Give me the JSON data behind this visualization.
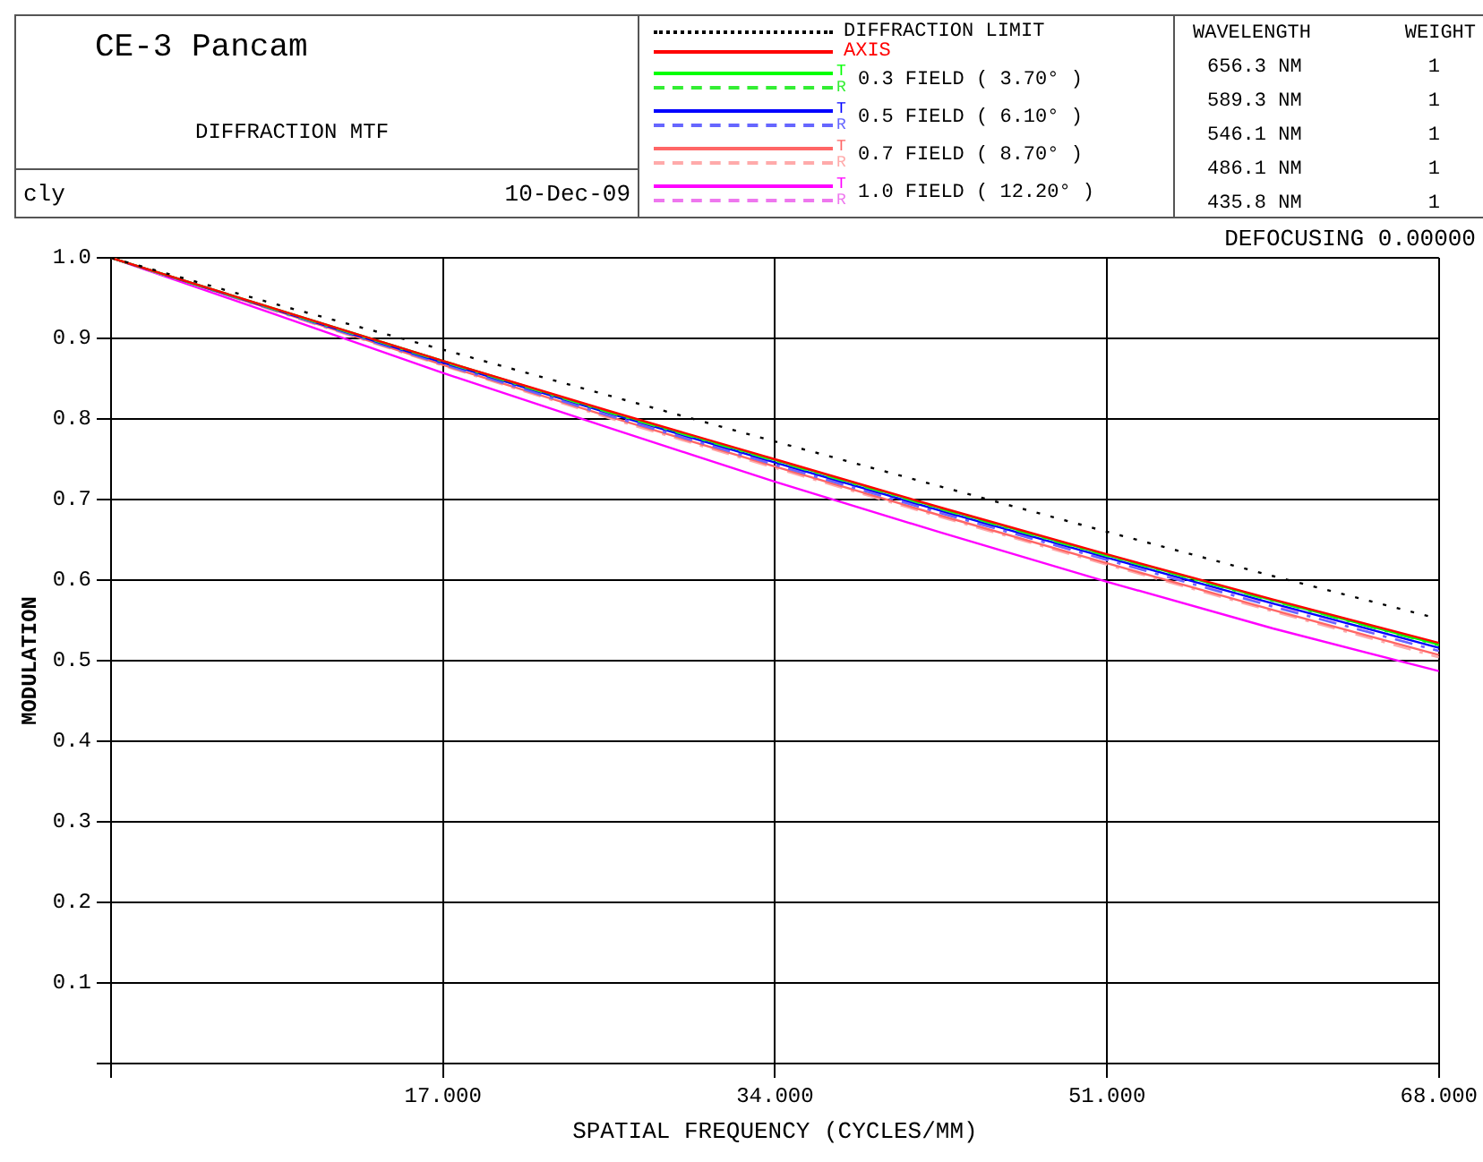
{
  "chart_data": {
    "type": "line",
    "title": "CE-3 Pancam",
    "subtitle": "DIFFRACTION MTF",
    "xlabel": "SPATIAL FREQUENCY (CYCLES/MM)",
    "ylabel": "MODULATION",
    "annotations": [
      "cly",
      "10-Dec-09",
      "DEFOCUSING 0.00000",
      "WAVELENGTH",
      "WEIGHT",
      "656.3 NM",
      "1",
      "589.3 NM",
      "1",
      "546.1 NM",
      "1",
      "486.1 NM",
      "1",
      "435.8 NM",
      "1",
      "0.3 FIELD ( 3.70° )",
      "0.5 FIELD ( 6.10° )",
      "0.7 FIELD ( 8.70° )",
      "1.0 FIELD ( 12.20° )"
    ],
    "x": [
      0,
      8.5,
      17,
      25.5,
      34,
      42.5,
      51,
      59.5,
      68
    ],
    "xlim": [
      0,
      68
    ],
    "xticks": [
      {
        "value": 0,
        "label": null
      },
      {
        "value": 17,
        "label": "17.000"
      },
      {
        "value": 34,
        "label": "34.000"
      },
      {
        "value": 51,
        "label": "51.000"
      },
      {
        "value": 68,
        "label": "68.000"
      }
    ],
    "ylim": [
      0,
      1
    ],
    "yticks": [
      {
        "value": 0,
        "label": null
      },
      0.1,
      0.2,
      0.3,
      0.4,
      0.5,
      0.6,
      0.7,
      0.8,
      0.9,
      {
        "value": 1,
        "label": "1.0"
      }
    ],
    "grid": true,
    "legend": "top",
    "marker": "none",
    "series": [
      {
        "name": "DIFFRACTION LIMIT",
        "color": "#000000",
        "line_style": "dotted",
        "values": [
          1,
          0.942,
          0.886,
          0.829,
          0.772,
          0.716,
          0.66,
          0.605,
          0.552
        ]
      },
      {
        "name": "AXIS",
        "color": "#ff0000",
        "line_style": "solid",
        "values": [
          1,
          0.936,
          0.872,
          0.81,
          0.75,
          0.69,
          0.632,
          0.576,
          0.522
        ]
      },
      {
        "name": "T",
        "color": "#00ff00",
        "line_style": "solid",
        "values": [
          1,
          0.936,
          0.872,
          0.809,
          0.749,
          0.689,
          0.631,
          0.575,
          0.52
        ]
      },
      {
        "name": "R",
        "color": "#33ee33",
        "line_style": "dashed",
        "values": [
          1,
          0.935,
          0.871,
          0.808,
          0.748,
          0.688,
          0.63,
          0.574,
          0.519
        ]
      },
      {
        "name": "T",
        "color": "#0000ff",
        "line_style": "solid",
        "values": [
          1,
          0.935,
          0.87,
          0.807,
          0.746,
          0.686,
          0.628,
          0.571,
          0.516
        ]
      },
      {
        "name": "R",
        "color": "#6666ff",
        "line_style": "dashed",
        "values": [
          1,
          0.934,
          0.868,
          0.804,
          0.743,
          0.683,
          0.625,
          0.567,
          0.512
        ]
      },
      {
        "name": "T",
        "color": "#ff6666",
        "line_style": "solid",
        "values": [
          1,
          0.934,
          0.867,
          0.803,
          0.741,
          0.68,
          0.621,
          0.563,
          0.507
        ]
      },
      {
        "name": "R",
        "color": "#ffaaaa",
        "line_style": "dashed",
        "values": [
          1,
          0.933,
          0.866,
          0.801,
          0.739,
          0.678,
          0.619,
          0.561,
          0.504
        ]
      },
      {
        "name": "T",
        "color": "#ff00ff",
        "line_style": "solid",
        "values": [
          1,
          0.929,
          0.857,
          0.789,
          0.722,
          0.659,
          0.598,
          0.54,
          0.487
        ]
      },
      {
        "name": "R",
        "color": "#ee77ee",
        "line_style": "dashed",
        "values": [
          1,
          0.934,
          0.868,
          0.805,
          0.744,
          0.684,
          0.625,
          0.568,
          0.512
        ]
      }
    ]
  }
}
